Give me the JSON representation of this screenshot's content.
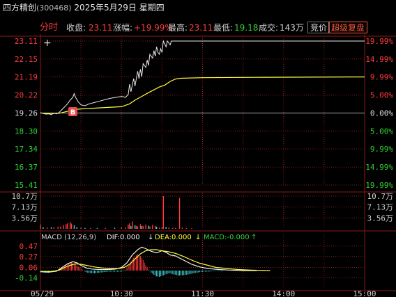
{
  "header": {
    "stock_name": "四方精创",
    "stock_code": "(300468)",
    "date": "2025年5月29日",
    "weekday": "星期四"
  },
  "info": {
    "mode_label": "分时",
    "close_label": "收盘:",
    "close_value": "23.11",
    "change_label": "涨幅:",
    "change_value": "+19.99%",
    "high_label": "最高:",
    "high_value": "23.11",
    "low_label": "最低:",
    "low_value": "19.18",
    "volume_label": "成交:",
    "volume_value": "143万"
  },
  "buttons": {
    "auction": "竞价",
    "super_replay": "超级复盘"
  },
  "colors": {
    "up": "#ff3b3b",
    "down": "#32d232",
    "price_line": "#e8e8e8",
    "avg_line": "#ffff3c",
    "grid": "#8a1a1a",
    "dea": "#ffff3c"
  },
  "price_axis": {
    "left_ticks": [
      "23.11",
      "22.15",
      "21.19",
      "20.22",
      "19.26",
      "18.30",
      "17.34",
      "16.37",
      "15.41"
    ],
    "right_ticks": [
      "19.99%",
      "14.99%",
      "9.99%",
      "5.00%",
      "0.00%",
      "5.00%",
      "9.99%",
      "14.99%",
      "19.99%"
    ]
  },
  "volume_axis": {
    "ticks": [
      "10.7万",
      "7.13万",
      "3.56万"
    ]
  },
  "macd_panel": {
    "title": "MACD (12,26,9)",
    "dif_label": "DIF:0.000",
    "dea_label": "DEA:0.000",
    "macd_label": "MACD:-0.000",
    "ticks": [
      "0.47",
      "0.27",
      "0.06",
      "-0.14"
    ]
  },
  "time_axis": [
    "05/29",
    "10:30",
    "11:30",
    "14:00",
    "15:00"
  ],
  "markers": {
    "buy": "B",
    "crosshair": "+"
  },
  "chart_data": {
    "type": "line",
    "prev_close": 19.26,
    "ylim": [
      15.41,
      23.11
    ],
    "x_minutes_total": 240,
    "price_series": [
      [
        0,
        19.28
      ],
      [
        2,
        19.24
      ],
      [
        4,
        19.2
      ],
      [
        6,
        19.22
      ],
      [
        8,
        19.18
      ],
      [
        10,
        19.25
      ],
      [
        12,
        19.22
      ],
      [
        14,
        19.3
      ],
      [
        16,
        19.45
      ],
      [
        18,
        19.6
      ],
      [
        20,
        19.75
      ],
      [
        22,
        19.95
      ],
      [
        24,
        20.1
      ],
      [
        25,
        20.3
      ],
      [
        26,
        20.1
      ],
      [
        28,
        19.85
      ],
      [
        30,
        19.7
      ],
      [
        33,
        19.65
      ],
      [
        36,
        19.75
      ],
      [
        40,
        19.82
      ],
      [
        44,
        19.9
      ],
      [
        48,
        19.98
      ],
      [
        52,
        20.05
      ],
      [
        56,
        20.1
      ],
      [
        60,
        20.15
      ],
      [
        63,
        20.1
      ],
      [
        65,
        20.25
      ],
      [
        66,
        20.8
      ],
      [
        67,
        20.4
      ],
      [
        69,
        21.1
      ],
      [
        70,
        20.7
      ],
      [
        72,
        21.5
      ],
      [
        73,
        21.1
      ],
      [
        74,
        21.6
      ],
      [
        75,
        21.2
      ],
      [
        76,
        21.9
      ],
      [
        78,
        21.7
      ],
      [
        79,
        22.1
      ],
      [
        80,
        21.8
      ],
      [
        81,
        22.4
      ],
      [
        83,
        22.2
      ],
      [
        84,
        22.6
      ],
      [
        85,
        22.3
      ],
      [
        86,
        22.8
      ],
      [
        87,
        22.5
      ],
      [
        88,
        22.4
      ],
      [
        89,
        22.7
      ],
      [
        90,
        22.5
      ],
      [
        91,
        23.11
      ],
      [
        93,
        22.8
      ],
      [
        94,
        23.11
      ],
      [
        96,
        22.9
      ],
      [
        97,
        23.11
      ],
      [
        100,
        23.11
      ],
      [
        120,
        23.11
      ],
      [
        240,
        23.11
      ]
    ],
    "avg_series": [
      [
        0,
        19.26
      ],
      [
        8,
        19.24
      ],
      [
        14,
        19.25
      ],
      [
        20,
        19.35
      ],
      [
        26,
        19.45
      ],
      [
        30,
        19.48
      ],
      [
        40,
        19.52
      ],
      [
        50,
        19.56
      ],
      [
        60,
        19.6
      ],
      [
        66,
        19.75
      ],
      [
        70,
        19.95
      ],
      [
        75,
        20.15
      ],
      [
        80,
        20.35
      ],
      [
        84,
        20.5
      ],
      [
        88,
        20.65
      ],
      [
        92,
        20.75
      ],
      [
        96,
        20.95
      ],
      [
        100,
        21.08
      ],
      [
        104,
        21.12
      ],
      [
        120,
        21.15
      ],
      [
        160,
        21.17
      ],
      [
        240,
        21.19
      ]
    ],
    "volume_ylim": [
      0,
      107000
    ],
    "volume_bars": [
      [
        0,
        14000,
        1
      ],
      [
        2,
        5000,
        0
      ],
      [
        5,
        4000,
        1
      ],
      [
        8,
        5500,
        0
      ],
      [
        10,
        5000,
        1
      ],
      [
        13,
        7000,
        1
      ],
      [
        15,
        7500,
        1
      ],
      [
        17,
        12000,
        1
      ],
      [
        19,
        15000,
        1
      ],
      [
        20,
        18000,
        1
      ],
      [
        22,
        22000,
        1
      ],
      [
        23,
        17000,
        1
      ],
      [
        25,
        12000,
        0
      ],
      [
        27,
        6000,
        0
      ],
      [
        30,
        4000,
        1
      ],
      [
        33,
        3000,
        0
      ],
      [
        37,
        2500,
        1
      ],
      [
        42,
        2500,
        0
      ],
      [
        48,
        3000,
        1
      ],
      [
        55,
        3500,
        0
      ],
      [
        60,
        5000,
        1
      ],
      [
        63,
        4000,
        1
      ],
      [
        65,
        14000,
        1
      ],
      [
        66,
        18000,
        1
      ],
      [
        67,
        9000,
        0
      ],
      [
        68,
        24000,
        1
      ],
      [
        70,
        12000,
        0
      ],
      [
        71,
        10000,
        1
      ],
      [
        72,
        8000,
        1
      ],
      [
        74,
        15000,
        1
      ],
      [
        75,
        9000,
        0
      ],
      [
        76,
        10000,
        1
      ],
      [
        78,
        14000,
        1
      ],
      [
        80,
        10000,
        0
      ],
      [
        81,
        8000,
        1
      ],
      [
        83,
        13000,
        1
      ],
      [
        85,
        9000,
        1
      ],
      [
        86,
        7000,
        0
      ],
      [
        88,
        4000,
        1
      ],
      [
        90,
        5000,
        1
      ],
      [
        91,
        107000,
        1
      ],
      [
        93,
        6000,
        0
      ],
      [
        95,
        4000,
        1
      ],
      [
        98,
        3000,
        1
      ],
      [
        100,
        3000,
        1
      ],
      [
        103,
        101000,
        1
      ],
      [
        105,
        4000,
        1
      ],
      [
        108,
        2500,
        1
      ],
      [
        112,
        2000,
        1
      ]
    ],
    "macd_ylim": [
      -0.2,
      0.52
    ],
    "macd_bars": [
      [
        0,
        -0.03
      ],
      [
        3,
        -0.04
      ],
      [
        6,
        -0.04
      ],
      [
        9,
        -0.03
      ],
      [
        12,
        -0.02
      ],
      [
        15,
        0.03
      ],
      [
        17,
        0.07
      ],
      [
        19,
        0.1
      ],
      [
        21,
        0.13
      ],
      [
        23,
        0.15
      ],
      [
        25,
        0.14
      ],
      [
        27,
        0.1
      ],
      [
        29,
        0.06
      ],
      [
        31,
        0.02
      ],
      [
        33,
        -0.02
      ],
      [
        35,
        -0.04
      ],
      [
        38,
        -0.05
      ],
      [
        41,
        -0.05
      ],
      [
        44,
        -0.04
      ],
      [
        47,
        -0.03
      ],
      [
        50,
        -0.02
      ],
      [
        53,
        -0.02
      ],
      [
        56,
        -0.02
      ],
      [
        59,
        -0.02
      ],
      [
        62,
        -0.01
      ],
      [
        64,
        0.05
      ],
      [
        66,
        0.14
      ],
      [
        68,
        0.22
      ],
      [
        70,
        0.27
      ],
      [
        72,
        0.31
      ],
      [
        74,
        0.28
      ],
      [
        76,
        0.2
      ],
      [
        78,
        0.1
      ],
      [
        80,
        0.02
      ],
      [
        82,
        -0.04
      ],
      [
        84,
        -0.08
      ],
      [
        86,
        -0.11
      ],
      [
        88,
        -0.12
      ],
      [
        90,
        -0.1
      ],
      [
        92,
        -0.08
      ],
      [
        94,
        -0.06
      ],
      [
        96,
        -0.05
      ],
      [
        98,
        -0.07
      ],
      [
        100,
        -0.08
      ],
      [
        102,
        -0.1
      ],
      [
        104,
        -0.09
      ],
      [
        106,
        -0.09
      ],
      [
        108,
        -0.08
      ],
      [
        110,
        -0.07
      ],
      [
        112,
        -0.06
      ],
      [
        114,
        -0.05
      ],
      [
        116,
        -0.04
      ],
      [
        118,
        -0.03
      ],
      [
        120,
        -0.02
      ],
      [
        124,
        -0.02
      ],
      [
        128,
        -0.01
      ],
      [
        132,
        -0.01
      ],
      [
        136,
        -0.01
      ]
    ],
    "dif_series": [
      [
        0,
        -0.02
      ],
      [
        6,
        -0.03
      ],
      [
        12,
        -0.01
      ],
      [
        16,
        0.06
      ],
      [
        20,
        0.13
      ],
      [
        24,
        0.17
      ],
      [
        27,
        0.15
      ],
      [
        30,
        0.1
      ],
      [
        34,
        0.05
      ],
      [
        38,
        0.03
      ],
      [
        44,
        0.02
      ],
      [
        50,
        0.02
      ],
      [
        56,
        0.03
      ],
      [
        60,
        0.06
      ],
      [
        64,
        0.15
      ],
      [
        68,
        0.3
      ],
      [
        72,
        0.4
      ],
      [
        75,
        0.45
      ],
      [
        78,
        0.42
      ],
      [
        82,
        0.37
      ],
      [
        86,
        0.34
      ],
      [
        90,
        0.38
      ],
      [
        93,
        0.35
      ],
      [
        96,
        0.3
      ],
      [
        100,
        0.28
      ],
      [
        106,
        0.2
      ],
      [
        112,
        0.12
      ],
      [
        118,
        0.07
      ],
      [
        124,
        0.04
      ],
      [
        132,
        0.02
      ],
      [
        140,
        0.01
      ],
      [
        150,
        0.0
      ],
      [
        160,
        0.0
      ]
    ],
    "dea_series": [
      [
        0,
        -0.02
      ],
      [
        8,
        -0.02
      ],
      [
        14,
        0.01
      ],
      [
        18,
        0.06
      ],
      [
        22,
        0.1
      ],
      [
        26,
        0.13
      ],
      [
        30,
        0.12
      ],
      [
        34,
        0.1
      ],
      [
        40,
        0.07
      ],
      [
        46,
        0.05
      ],
      [
        52,
        0.04
      ],
      [
        58,
        0.04
      ],
      [
        62,
        0.06
      ],
      [
        66,
        0.12
      ],
      [
        70,
        0.22
      ],
      [
        74,
        0.32
      ],
      [
        78,
        0.38
      ],
      [
        82,
        0.4
      ],
      [
        86,
        0.4
      ],
      [
        90,
        0.38
      ],
      [
        95,
        0.36
      ],
      [
        100,
        0.33
      ],
      [
        106,
        0.27
      ],
      [
        112,
        0.2
      ],
      [
        118,
        0.14
      ],
      [
        124,
        0.1
      ],
      [
        130,
        0.06
      ],
      [
        138,
        0.04
      ],
      [
        146,
        0.02
      ],
      [
        156,
        0.01
      ],
      [
        170,
        0.0
      ]
    ]
  }
}
